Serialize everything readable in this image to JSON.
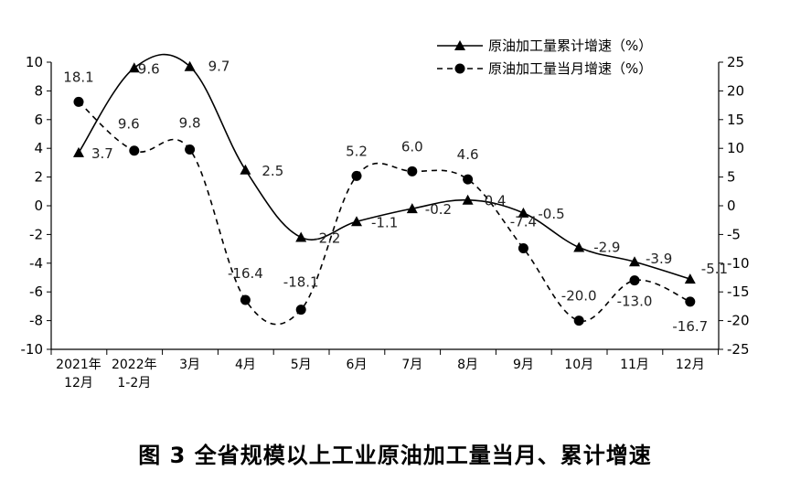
{
  "caption": "图 3 全省规模以上工业原油加工量当月、累计增速",
  "chart_data": {
    "type": "line",
    "categories": [
      [
        "2021年",
        "12月"
      ],
      [
        "2022年",
        "1-2月"
      ],
      [
        "3月"
      ],
      [
        "4月"
      ],
      [
        "5月"
      ],
      [
        "6月"
      ],
      [
        "7月"
      ],
      [
        "8月"
      ],
      [
        "9月"
      ],
      [
        "10月"
      ],
      [
        "11月"
      ],
      [
        "12月"
      ]
    ],
    "series": [
      {
        "name": "原油加工量累计增速（%）",
        "axis": "left",
        "line_style": "solid",
        "marker": "triangle",
        "values": [
          3.7,
          9.6,
          9.7,
          2.5,
          -2.2,
          -1.1,
          -0.2,
          0.4,
          -0.5,
          -2.9,
          -3.9,
          -5.1
        ],
        "labels": [
          "3.7",
          "9.6",
          "9.7",
          "2.5",
          "-2.2",
          "-1.1",
          "-0.2",
          "0.4",
          "-0.5",
          "-2.9",
          "-3.9",
          "-5.1"
        ]
      },
      {
        "name": "原油加工量当月增速（%）",
        "axis": "right",
        "line_style": "dashed",
        "marker": "circle",
        "values": [
          18.1,
          9.6,
          9.8,
          -16.4,
          -18.1,
          5.2,
          6.0,
          4.6,
          -7.4,
          -20.0,
          -13.0,
          -16.7
        ],
        "labels": [
          "18.1",
          "9.6",
          "9.8",
          "-16.4",
          "-18.1",
          "5.2",
          "6.0",
          "4.6",
          "-7.4",
          "-20.0",
          "-13.0",
          "-16.7"
        ]
      }
    ],
    "y_left": {
      "min": -10,
      "max": 10,
      "step": 2,
      "ticks": [
        "10",
        "8",
        "6",
        "4",
        "2",
        "0",
        "-2",
        "-4",
        "-6",
        "-8",
        "-10"
      ]
    },
    "y_right": {
      "min": -25,
      "max": 25,
      "step": 5,
      "ticks": [
        "25",
        "20",
        "15",
        "10",
        "5",
        "0",
        "-5",
        "-10",
        "-15",
        "-20",
        "-25"
      ]
    },
    "grid": false,
    "legend_position": "top-right",
    "smooth": true
  }
}
